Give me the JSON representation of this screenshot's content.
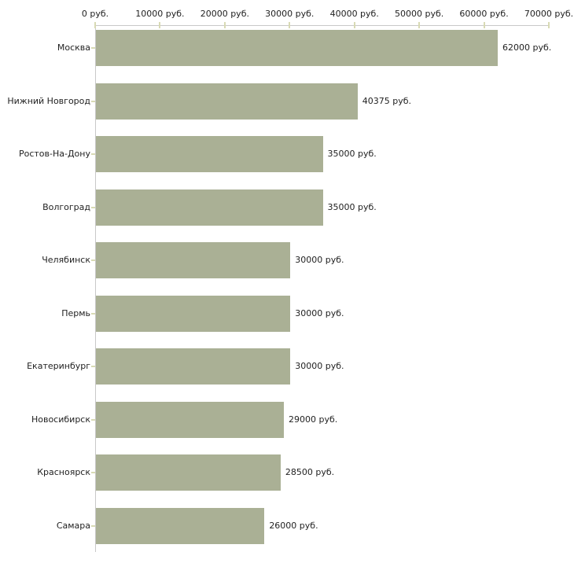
{
  "chart_data": {
    "type": "bar",
    "orientation": "horizontal",
    "title": "",
    "categories": [
      "Москва",
      "Нижний Новгород",
      "Ростов-На-Дону",
      "Волгоград",
      "Челябинск",
      "Пермь",
      "Екатеринбург",
      "Новосибирск",
      "Красноярск",
      "Самара"
    ],
    "values": [
      62000,
      40375,
      35000,
      35000,
      30000,
      30000,
      30000,
      29000,
      28500,
      26000
    ],
    "value_labels": [
      "62000 руб.",
      "40375 руб.",
      "35000 руб.",
      "35000 руб.",
      "30000 руб.",
      "30000 руб.",
      "30000 руб.",
      "29000 руб.",
      "28500 руб.",
      "26000 руб."
    ],
    "x_ticks": [
      {
        "value": 0,
        "label": "0 руб."
      },
      {
        "value": 10000,
        "label": "10000 руб."
      },
      {
        "value": 20000,
        "label": "20000 руб."
      },
      {
        "value": 30000,
        "label": "30000 руб."
      },
      {
        "value": 40000,
        "label": "40000 руб."
      },
      {
        "value": 50000,
        "label": "50000 руб."
      },
      {
        "value": 60000,
        "label": "60000 руб."
      },
      {
        "value": 70000,
        "label": "70000 руб."
      }
    ],
    "xlim": [
      0,
      70000
    ],
    "unit": "руб.",
    "legend": "none",
    "grid": "off",
    "colors": {
      "bar": "#aab095",
      "axis_line": "#c8c8c8",
      "tick_mark": "#d8dab4",
      "text": "#222222",
      "background": "#ffffff"
    }
  }
}
